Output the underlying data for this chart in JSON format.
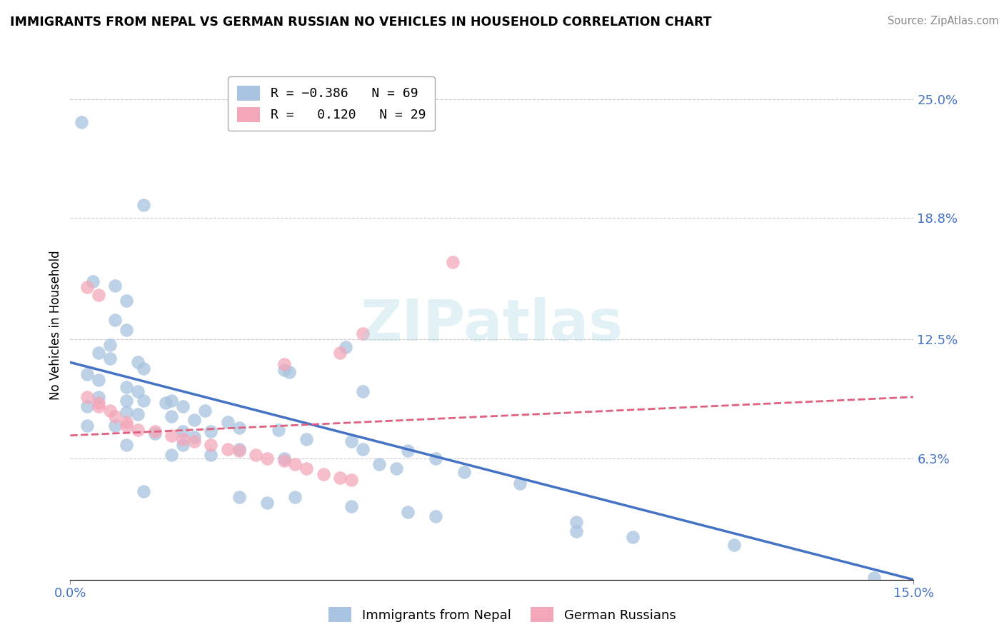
{
  "title": "IMMIGRANTS FROM NEPAL VS GERMAN RUSSIAN NO VEHICLES IN HOUSEHOLD CORRELATION CHART",
  "source": "Source: ZipAtlas.com",
  "ylabel_ticks": [
    "6.3%",
    "12.5%",
    "18.8%",
    "25.0%"
  ],
  "ylabel_values": [
    0.063,
    0.125,
    0.188,
    0.25
  ],
  "xlim": [
    0.0,
    0.15
  ],
  "ylim": [
    0.0,
    0.265
  ],
  "ylabel": "No Vehicles in Household",
  "nepal_color": "#a8c4e0",
  "german_color": "#f4a7b9",
  "nepal_line_color": "#4472c4",
  "german_line_color": "#e06080",
  "watermark": "ZIPatlas",
  "nepal_R": -0.386,
  "german_R": 0.12,
  "nepal_points": [
    [
      0.002,
      0.238
    ],
    [
      0.013,
      0.195
    ],
    [
      0.008,
      0.153
    ],
    [
      0.01,
      0.145
    ],
    [
      0.008,
      0.135
    ],
    [
      0.01,
      0.13
    ],
    [
      0.004,
      0.155
    ],
    [
      0.007,
      0.122
    ],
    [
      0.049,
      0.121
    ],
    [
      0.005,
      0.118
    ],
    [
      0.007,
      0.115
    ],
    [
      0.012,
      0.113
    ],
    [
      0.013,
      0.11
    ],
    [
      0.038,
      0.109
    ],
    [
      0.039,
      0.108
    ],
    [
      0.003,
      0.107
    ],
    [
      0.005,
      0.104
    ],
    [
      0.01,
      0.1
    ],
    [
      0.012,
      0.098
    ],
    [
      0.052,
      0.098
    ],
    [
      0.005,
      0.095
    ],
    [
      0.01,
      0.093
    ],
    [
      0.013,
      0.093
    ],
    [
      0.017,
      0.092
    ],
    [
      0.003,
      0.09
    ],
    [
      0.02,
      0.09
    ],
    [
      0.024,
      0.088
    ],
    [
      0.01,
      0.087
    ],
    [
      0.012,
      0.086
    ],
    [
      0.018,
      0.085
    ],
    [
      0.022,
      0.083
    ],
    [
      0.028,
      0.082
    ],
    [
      0.003,
      0.08
    ],
    [
      0.008,
      0.08
    ],
    [
      0.03,
      0.079
    ],
    [
      0.037,
      0.078
    ],
    [
      0.02,
      0.077
    ],
    [
      0.025,
      0.077
    ],
    [
      0.015,
      0.076
    ],
    [
      0.022,
      0.074
    ],
    [
      0.018,
      0.093
    ],
    [
      0.042,
      0.073
    ],
    [
      0.05,
      0.072
    ],
    [
      0.01,
      0.07
    ],
    [
      0.02,
      0.07
    ],
    [
      0.03,
      0.068
    ],
    [
      0.052,
      0.068
    ],
    [
      0.06,
      0.067
    ],
    [
      0.018,
      0.065
    ],
    [
      0.025,
      0.065
    ],
    [
      0.038,
      0.063
    ],
    [
      0.065,
      0.063
    ],
    [
      0.055,
      0.06
    ],
    [
      0.058,
      0.058
    ],
    [
      0.07,
      0.056
    ],
    [
      0.08,
      0.05
    ],
    [
      0.013,
      0.046
    ],
    [
      0.03,
      0.043
    ],
    [
      0.04,
      0.043
    ],
    [
      0.035,
      0.04
    ],
    [
      0.05,
      0.038
    ],
    [
      0.06,
      0.035
    ],
    [
      0.065,
      0.033
    ],
    [
      0.09,
      0.03
    ],
    [
      0.09,
      0.025
    ],
    [
      0.1,
      0.022
    ],
    [
      0.118,
      0.018
    ],
    [
      0.143,
      0.001
    ]
  ],
  "german_points": [
    [
      0.003,
      0.095
    ],
    [
      0.005,
      0.092
    ],
    [
      0.005,
      0.09
    ],
    [
      0.007,
      0.088
    ],
    [
      0.008,
      0.085
    ],
    [
      0.01,
      0.082
    ],
    [
      0.01,
      0.08
    ],
    [
      0.012,
      0.078
    ],
    [
      0.015,
      0.077
    ],
    [
      0.018,
      0.075
    ],
    [
      0.02,
      0.073
    ],
    [
      0.022,
      0.072
    ],
    [
      0.025,
      0.07
    ],
    [
      0.028,
      0.068
    ],
    [
      0.03,
      0.067
    ],
    [
      0.033,
      0.065
    ],
    [
      0.035,
      0.063
    ],
    [
      0.038,
      0.062
    ],
    [
      0.04,
      0.06
    ],
    [
      0.042,
      0.058
    ],
    [
      0.045,
      0.055
    ],
    [
      0.048,
      0.053
    ],
    [
      0.05,
      0.052
    ],
    [
      0.003,
      0.152
    ],
    [
      0.005,
      0.148
    ],
    [
      0.068,
      0.165
    ],
    [
      0.052,
      0.128
    ],
    [
      0.048,
      0.118
    ],
    [
      0.038,
      0.112
    ]
  ],
  "nepal_line_x": [
    0.0,
    0.15
  ],
  "nepal_line_y": [
    0.113,
    0.0
  ],
  "german_line_x": [
    0.0,
    0.15
  ],
  "german_line_y": [
    0.075,
    0.095
  ]
}
